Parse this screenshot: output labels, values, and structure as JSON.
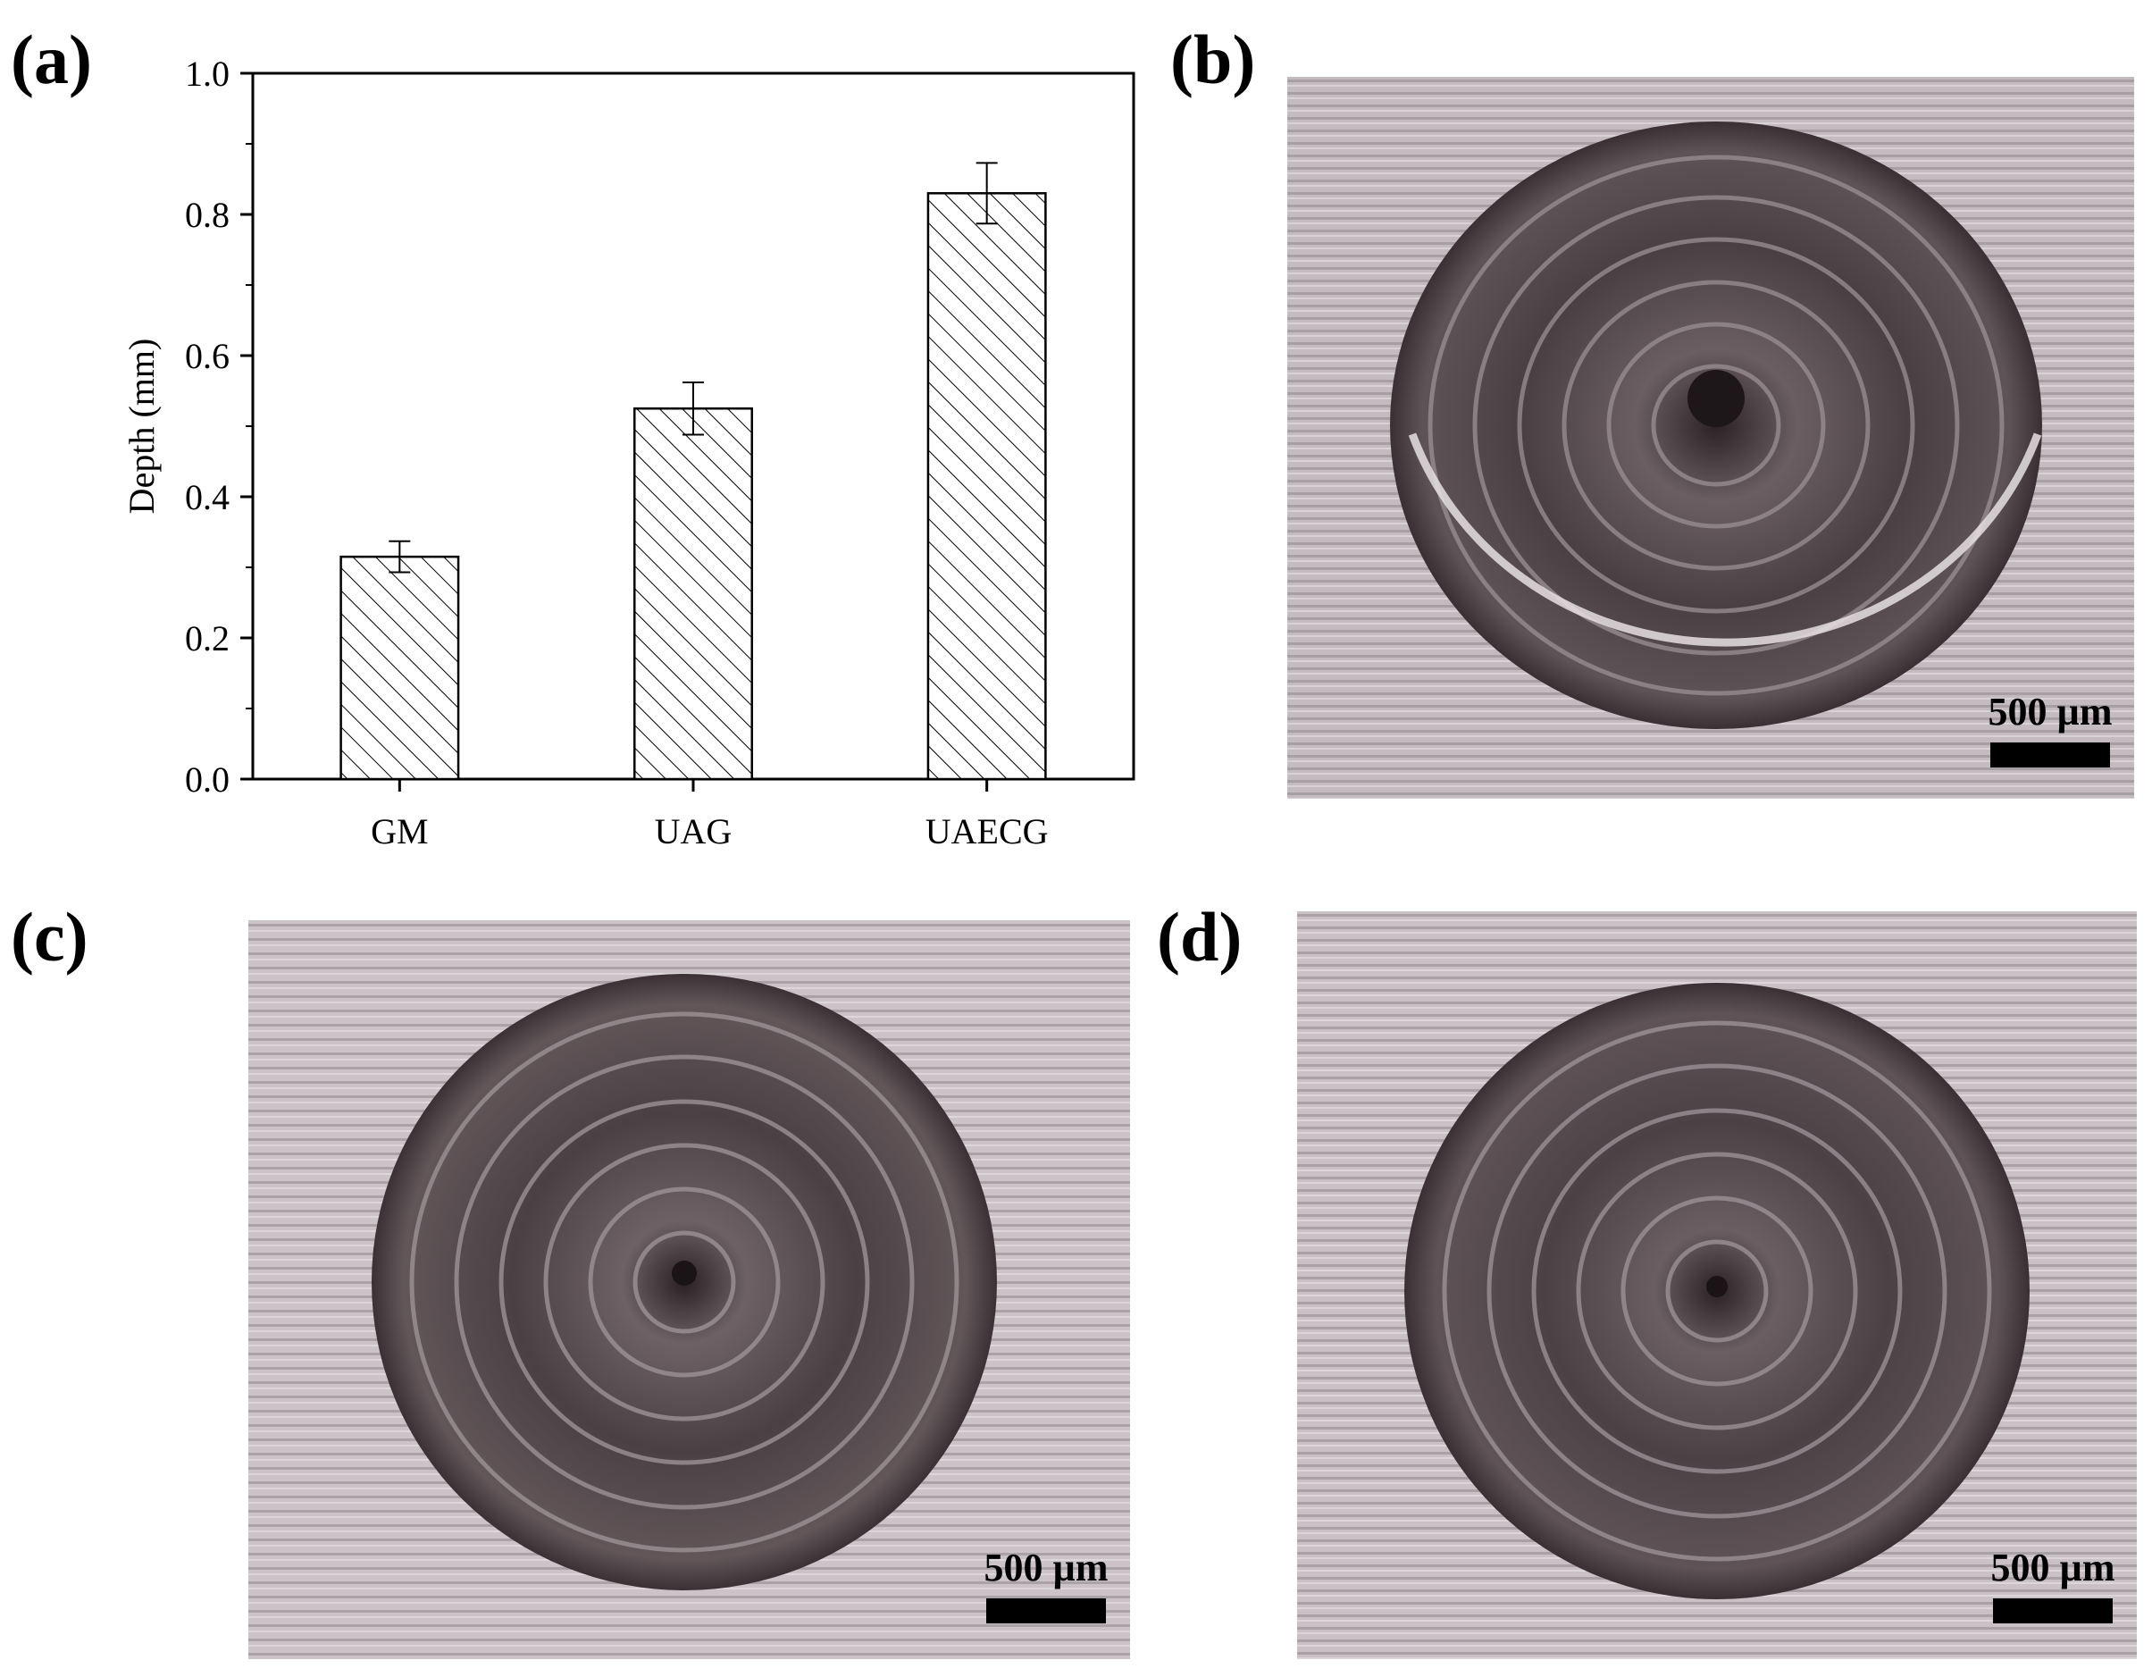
{
  "panels": {
    "a": "(a)",
    "b": "(b)",
    "c": "(c)",
    "d": "(d)"
  },
  "scale_label": "500 µm",
  "colors": {
    "bar_fill": "#ffffff",
    "bar_hatch": "#000000",
    "surface_light": "#c7bfc3",
    "crater_dark": "#3b3134"
  },
  "chart_data": {
    "type": "bar",
    "categories": [
      "GM",
      "UAG",
      "UAECG"
    ],
    "values": [
      0.315,
      0.525,
      0.83
    ],
    "errors": [
      0.022,
      0.037,
      0.043
    ],
    "xlabel": "",
    "ylabel": "Depth (mm)",
    "ylim": [
      0.0,
      1.0
    ],
    "yticks": [
      "0.0",
      "0.2",
      "0.4",
      "0.6",
      "0.8",
      "1.0"
    ],
    "grid": false,
    "hatch": "diagonal"
  }
}
